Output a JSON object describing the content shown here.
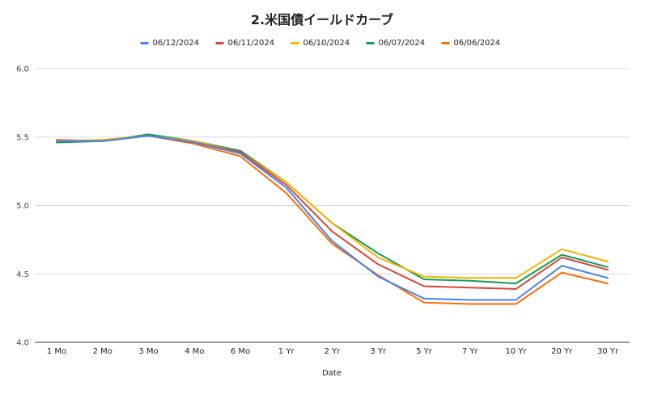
{
  "chart_data": {
    "type": "line",
    "title": "2.米国債イールドカーブ",
    "xlabel": "Date",
    "ylabel": "",
    "ylim": [
      4.0,
      6.0
    ],
    "yticks": [
      "4.0",
      "4.5",
      "5.0",
      "5.5",
      "6.0"
    ],
    "grid": true,
    "legend_position": "top",
    "categories": [
      "1 Mo",
      "2 Mo",
      "3 Mo",
      "4 Mo",
      "6 Mo",
      "1 Yr",
      "2 Yr",
      "3 Yr",
      "5 Yr",
      "7 Yr",
      "10 Yr",
      "20 Yr",
      "30 Yr"
    ],
    "series": [
      {
        "name": "06/12/2024",
        "color": "#4285f4",
        "values": [
          5.47,
          5.47,
          5.51,
          5.46,
          5.38,
          5.13,
          4.74,
          4.48,
          4.32,
          4.31,
          4.31,
          4.56,
          4.47
        ]
      },
      {
        "name": "06/11/2024",
        "color": "#db4437",
        "values": [
          5.47,
          5.47,
          5.51,
          5.46,
          5.39,
          5.15,
          4.81,
          4.57,
          4.41,
          4.4,
          4.39,
          4.62,
          4.53
        ]
      },
      {
        "name": "06/10/2024",
        "color": "#f4b400",
        "values": [
          5.47,
          5.48,
          5.51,
          5.47,
          5.39,
          5.17,
          4.87,
          4.62,
          4.48,
          4.47,
          4.47,
          4.68,
          4.59
        ]
      },
      {
        "name": "06/07/2024",
        "color": "#0f9d58",
        "values": [
          5.46,
          5.47,
          5.52,
          5.47,
          5.4,
          5.17,
          4.87,
          4.65,
          4.46,
          4.45,
          4.43,
          4.64,
          4.55
        ]
      },
      {
        "name": "06/06/2024",
        "color": "#ff6d01",
        "values": [
          5.48,
          5.47,
          5.51,
          5.45,
          5.36,
          5.09,
          4.72,
          4.49,
          4.29,
          4.28,
          4.28,
          4.51,
          4.43
        ]
      }
    ]
  }
}
